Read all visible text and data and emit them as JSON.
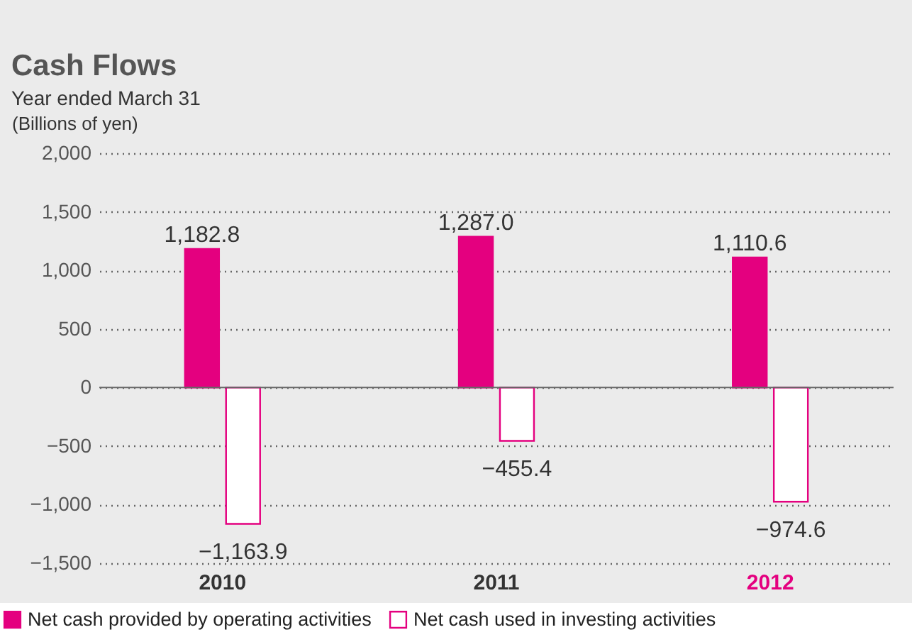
{
  "chart_data": {
    "type": "bar",
    "title": "Cash Flows",
    "subtitle": "Year ended March 31",
    "ylabel": "(Billions of yen)",
    "categories": [
      "2010",
      "2011",
      "2012"
    ],
    "series": [
      {
        "name": "Net cash provided by operating activities",
        "color": "#e4007f",
        "values": [
          1182.8,
          1287.0,
          1110.6
        ],
        "value_labels": [
          "1,182.8",
          "1,287.0",
          "1,110.6"
        ]
      },
      {
        "name": "Net cash used in investing activities",
        "color": "#ffffff",
        "values": [
          -1163.9,
          -455.4,
          -974.6
        ],
        "value_labels": [
          "−1,163.9",
          "−455.4",
          "−974.6"
        ]
      }
    ],
    "ylim": [
      -1500,
      2000
    ],
    "yticks": [
      {
        "value": -1500,
        "label": "−1,500"
      },
      {
        "value": -1000,
        "label": "−1,000"
      },
      {
        "value": -500,
        "label": "−500"
      },
      0,
      500,
      {
        "value": 1000,
        "label": "1,000"
      },
      {
        "value": 1500,
        "label": "1,500"
      },
      {
        "value": 2000,
        "label": "2,000"
      }
    ],
    "grid": "y",
    "legend": "bottom"
  }
}
